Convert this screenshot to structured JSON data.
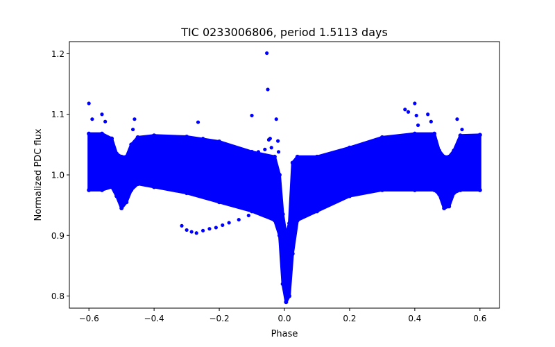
{
  "chart_data": {
    "type": "scatter",
    "title": "TIC 0233006806, period 1.5113 days",
    "xlabel": "Phase",
    "ylabel": "Normalized PDC flux",
    "xlim": [
      -0.66,
      0.66
    ],
    "ylim": [
      0.78,
      1.22
    ],
    "xticks": [
      -0.6,
      -0.4,
      -0.2,
      0.0,
      0.2,
      0.4,
      0.6
    ],
    "xtick_labels": [
      "−0.6",
      "−0.4",
      "−0.2",
      "0.0",
      "0.2",
      "0.4",
      "0.6"
    ],
    "yticks": [
      0.8,
      0.9,
      1.0,
      1.1,
      1.2
    ],
    "ytick_labels": [
      "0.8",
      "0.9",
      "1.0",
      "1.1",
      "1.2"
    ],
    "grid": false,
    "legend": "none",
    "series_color": "#0000ff",
    "series": [
      {
        "band_envelope": [
          {
            "x": -0.6,
            "y_lo": 0.975,
            "y_hi": 1.068
          },
          {
            "x": -0.56,
            "y_lo": 0.975,
            "y_hi": 1.068
          },
          {
            "x": -0.53,
            "y_lo": 0.98,
            "y_hi": 1.06
          },
          {
            "x": -0.515,
            "y_lo": 0.965,
            "y_hi": 1.035
          },
          {
            "x": -0.5,
            "y_lo": 0.945,
            "y_hi": 1.03
          },
          {
            "x": -0.485,
            "y_lo": 0.955,
            "y_hi": 1.03
          },
          {
            "x": -0.47,
            "y_lo": 0.975,
            "y_hi": 1.05
          },
          {
            "x": -0.45,
            "y_lo": 0.985,
            "y_hi": 1.062
          },
          {
            "x": -0.4,
            "y_lo": 0.98,
            "y_hi": 1.065
          },
          {
            "x": -0.3,
            "y_lo": 0.97,
            "y_hi": 1.063
          },
          {
            "x": -0.2,
            "y_lo": 0.955,
            "y_hi": 1.055
          },
          {
            "x": -0.1,
            "y_lo": 0.94,
            "y_hi": 1.038
          },
          {
            "x": -0.03,
            "y_lo": 0.925,
            "y_hi": 1.03
          },
          {
            "x": -0.015,
            "y_lo": 0.9,
            "y_hi": 1.0
          },
          {
            "x": -0.005,
            "y_lo": 0.82,
            "y_hi": 0.935
          },
          {
            "x": 0.005,
            "y_lo": 0.79,
            "y_hi": 0.9
          },
          {
            "x": 0.015,
            "y_lo": 0.8,
            "y_hi": 0.92
          },
          {
            "x": 0.025,
            "y_lo": 0.87,
            "y_hi": 1.02
          },
          {
            "x": 0.04,
            "y_lo": 0.925,
            "y_hi": 1.03
          },
          {
            "x": 0.1,
            "y_lo": 0.94,
            "y_hi": 1.03
          },
          {
            "x": 0.2,
            "y_lo": 0.965,
            "y_hi": 1.045
          },
          {
            "x": 0.3,
            "y_lo": 0.975,
            "y_hi": 1.062
          },
          {
            "x": 0.4,
            "y_lo": 0.975,
            "y_hi": 1.068
          },
          {
            "x": 0.46,
            "y_lo": 0.975,
            "y_hi": 1.068
          },
          {
            "x": 0.475,
            "y_lo": 0.968,
            "y_hi": 1.04
          },
          {
            "x": 0.49,
            "y_lo": 0.945,
            "y_hi": 1.03
          },
          {
            "x": 0.505,
            "y_lo": 0.948,
            "y_hi": 1.03
          },
          {
            "x": 0.52,
            "y_lo": 0.97,
            "y_hi": 1.04
          },
          {
            "x": 0.54,
            "y_lo": 0.975,
            "y_hi": 1.065
          },
          {
            "x": 0.6,
            "y_lo": 0.975,
            "y_hi": 1.066
          }
        ],
        "branch_points": [
          [
            -0.315,
            0.916
          ],
          [
            -0.3,
            0.909
          ],
          [
            -0.285,
            0.906
          ],
          [
            -0.27,
            0.904
          ],
          [
            -0.25,
            0.908
          ],
          [
            -0.23,
            0.911
          ],
          [
            -0.21,
            0.913
          ],
          [
            -0.19,
            0.917
          ],
          [
            -0.17,
            0.921
          ],
          [
            -0.14,
            0.926
          ],
          [
            -0.11,
            0.933
          ],
          [
            -0.08,
            0.94
          ],
          [
            -0.05,
            0.948
          ],
          [
            -0.03,
            0.953
          ],
          [
            0.05,
            0.94
          ],
          [
            0.09,
            0.945
          ],
          [
            0.13,
            0.952
          ],
          [
            0.17,
            0.962
          ],
          [
            0.2,
            0.972
          ],
          [
            0.23,
            0.985
          ],
          [
            0.26,
            1.0
          ],
          [
            0.29,
            1.012
          ],
          [
            0.32,
            1.022
          ]
        ],
        "outliers": [
          [
            -0.6,
            1.118
          ],
          [
            -0.59,
            1.092
          ],
          [
            -0.56,
            1.1
          ],
          [
            -0.55,
            1.088
          ],
          [
            -0.46,
            1.092
          ],
          [
            -0.465,
            1.075
          ],
          [
            -0.265,
            1.087
          ],
          [
            -0.25,
            1.06
          ],
          [
            -0.13,
            1.042
          ],
          [
            -0.1,
            1.098
          ],
          [
            -0.08,
            1.038
          ],
          [
            -0.06,
            1.042
          ],
          [
            -0.054,
            1.201
          ],
          [
            -0.051,
            1.141
          ],
          [
            -0.048,
            1.058
          ],
          [
            -0.044,
            1.06
          ],
          [
            -0.04,
            1.045
          ],
          [
            -0.025,
            1.092
          ],
          [
            -0.02,
            1.056
          ],
          [
            -0.018,
            1.038
          ],
          [
            0.37,
            1.108
          ],
          [
            0.38,
            1.104
          ],
          [
            0.4,
            1.118
          ],
          [
            0.405,
            1.098
          ],
          [
            0.41,
            1.082
          ],
          [
            0.44,
            1.1
          ],
          [
            0.45,
            1.088
          ],
          [
            0.53,
            1.092
          ],
          [
            0.545,
            1.075
          ],
          [
            -0.12,
            1.03
          ]
        ]
      }
    ]
  }
}
